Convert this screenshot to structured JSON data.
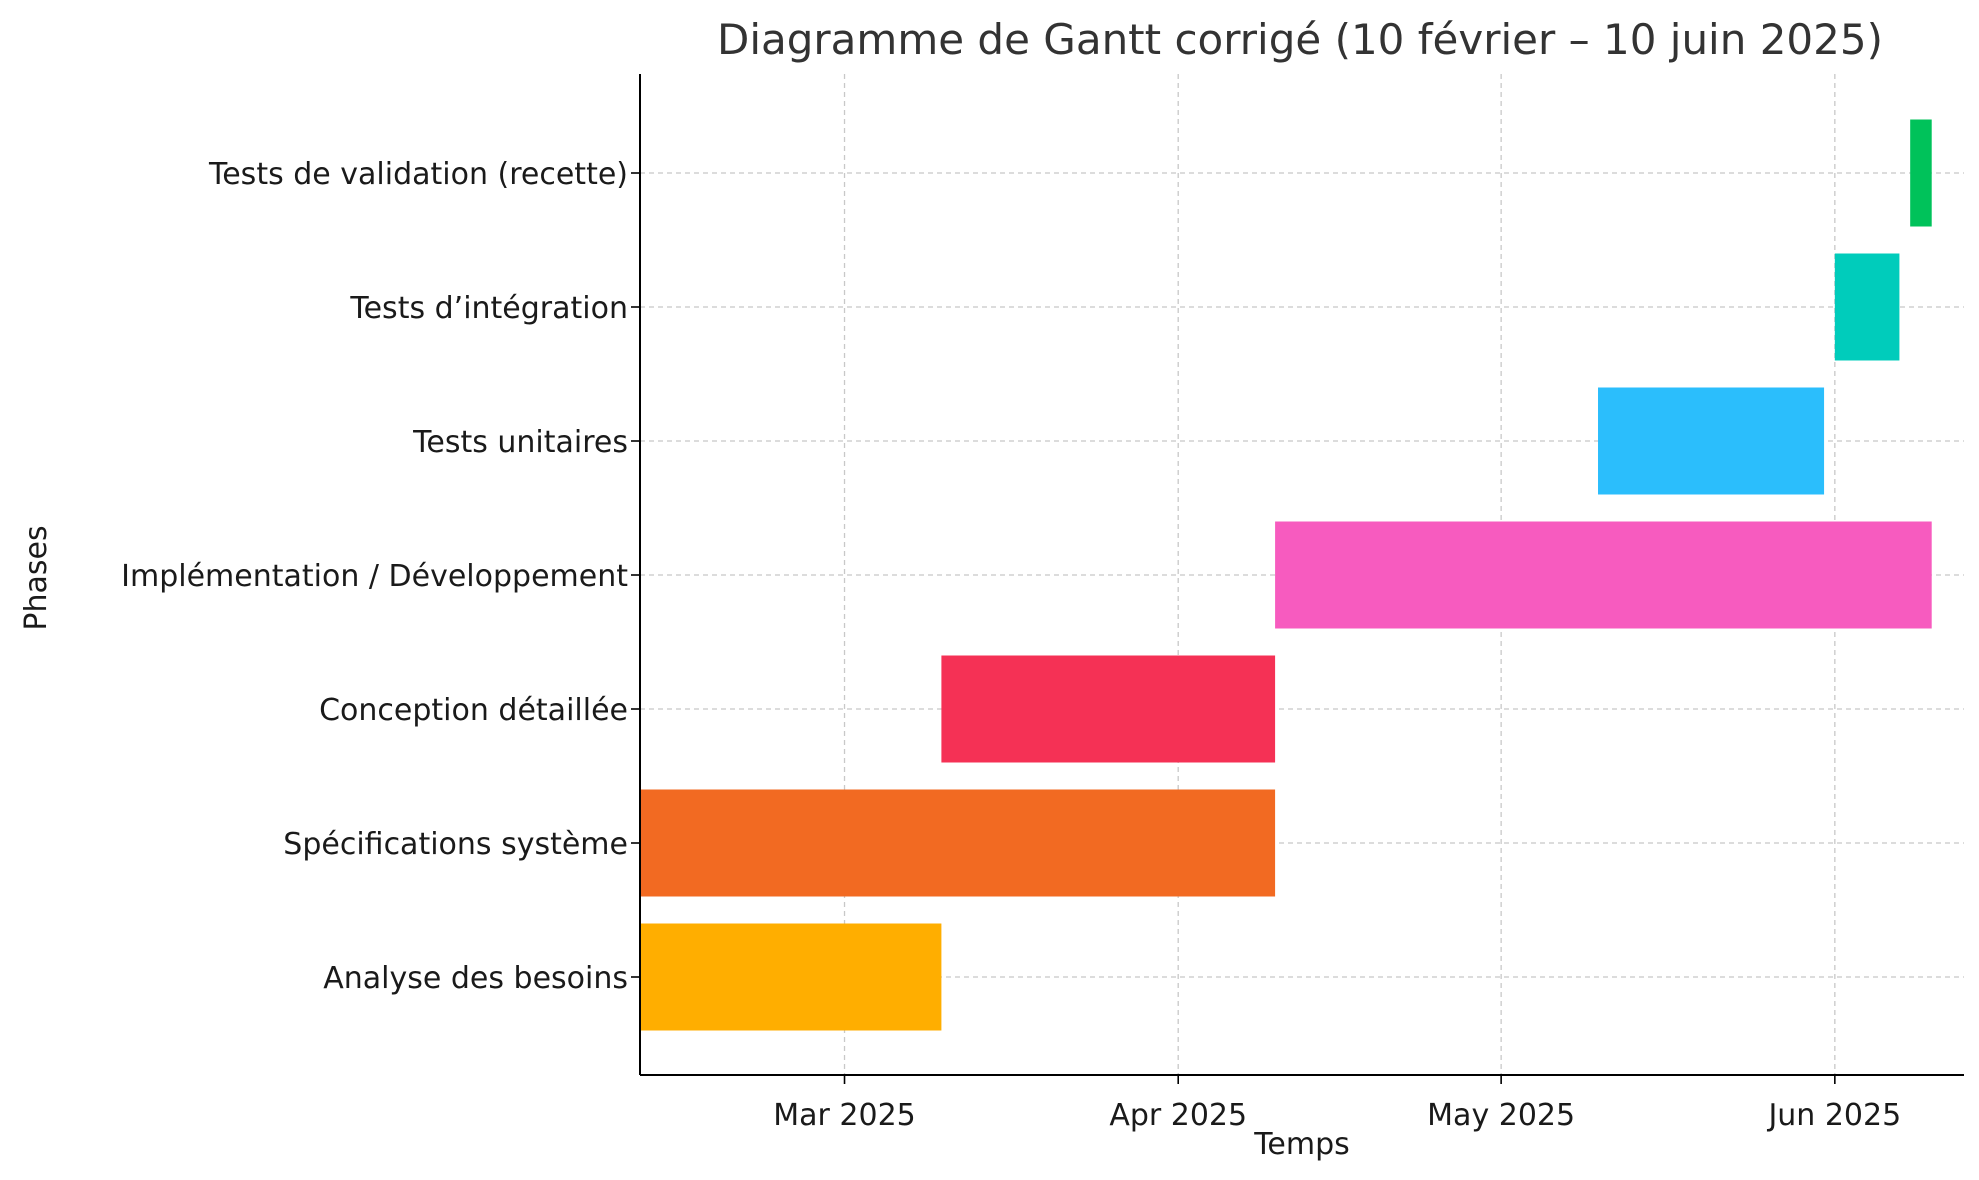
{
  "chart_data": {
    "type": "gantt",
    "title": "Diagramme de Gantt corrigé (10 février – 10 juin 2025)",
    "xlabel": "Temps",
    "ylabel": "Phases",
    "xlim": [
      "2025-02-10",
      "2025-06-13"
    ],
    "x_ticks": [
      {
        "date": "2025-03-01",
        "label": "Mar 2025"
      },
      {
        "date": "2025-04-01",
        "label": "Apr 2025"
      },
      {
        "date": "2025-05-01",
        "label": "May 2025"
      },
      {
        "date": "2025-06-01",
        "label": "Jun 2025"
      }
    ],
    "grid": true,
    "tasks": [
      {
        "name": "Analyse des besoins",
        "start": "2025-02-10",
        "end": "2025-03-10",
        "color": "#FFAE00"
      },
      {
        "name": "Spécifications système",
        "start": "2025-02-10",
        "end": "2025-04-10",
        "color": "#F26A22"
      },
      {
        "name": "Conception détaillée",
        "start": "2025-03-10",
        "end": "2025-04-10",
        "color": "#F53155"
      },
      {
        "name": "Implémentation / Développement",
        "start": "2025-04-10",
        "end": "2025-06-10",
        "color": "#F75BBF"
      },
      {
        "name": "Tests unitaires",
        "start": "2025-05-10",
        "end": "2025-05-31",
        "color": "#2BBEFC"
      },
      {
        "name": "Tests d’intégration",
        "start": "2025-06-01",
        "end": "2025-06-07",
        "color": "#00CCBB"
      },
      {
        "name": "Tests de validation (recette)",
        "start": "2025-06-08",
        "end": "2025-06-10",
        "color": "#00C25A"
      }
    ]
  }
}
